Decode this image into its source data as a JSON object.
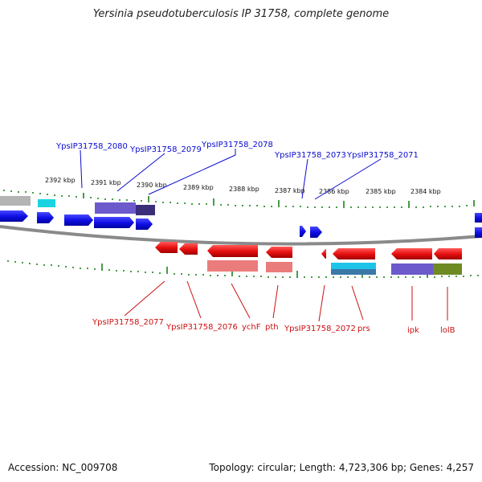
{
  "title": "Yersinia pseudotuberculosis IP 31758, complete genome",
  "footer": {
    "accession": "Accession: NC_009708",
    "topology": "Topology: circular; Length: 4,723,306 bp; Genes: 4,257"
  },
  "colors": {
    "forward_gene": "#1010e6",
    "reverse_gene": "#e81010",
    "backbone": "#888888",
    "ticks": "#0a7a0a",
    "label_blue": "#0a0ad0",
    "label_red": "#cc1111"
  },
  "scale_labels": [
    "2392 kbp",
    "2391 kbp",
    "2390 kbp",
    "2389 kbp",
    "2388 kbp",
    "2387 kbp",
    "2386 kbp",
    "2385 kbp",
    "2384 kbp"
  ],
  "top_labels": [
    "YpsIP31758_2080",
    "YpsIP31758_2079",
    "YpsIP31758_2078",
    "YpsIP31758_2073",
    "YpsIP31758_2071"
  ],
  "bottom_labels": [
    "YpsIP31758_2077",
    "YpsIP31758_2076",
    "ychF",
    "pth",
    "YpsIP31758_2072",
    "prs",
    "ipk",
    "lolB"
  ]
}
